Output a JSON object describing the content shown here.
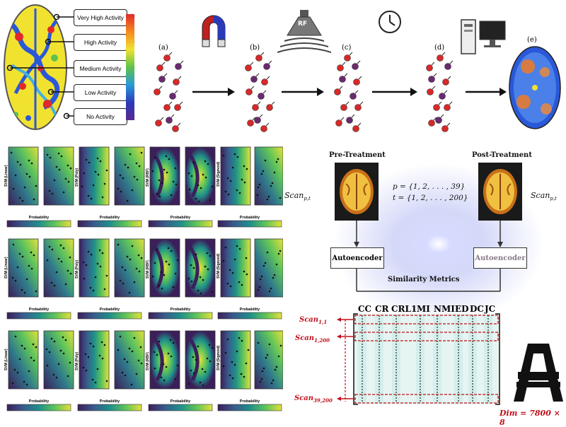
{
  "activity_legend": {
    "items": [
      "Very High Activity",
      "High Activity",
      "Medium Activity",
      "Low Activity",
      "No Activity"
    ]
  },
  "stages": {
    "labels": [
      "(a)",
      "(b)",
      "(c)",
      "(d)",
      "(e)"
    ],
    "rf_label": "RF"
  },
  "svm_grid": {
    "panel_titles": [
      "SVM (Linear)",
      "SVM (Poly)",
      "SVM (RBF)",
      "SVM (Sigmoid)"
    ],
    "colorbar_title": "Probability",
    "scan_label": "Scan",
    "scan_sub": "p,t"
  },
  "treatment": {
    "pre_label": "Pre-Treatment",
    "post_label": "Post-Treatment",
    "p_set": "p = {1, 2, . . . , 39}",
    "t_set": "t = {1, 2, . . . , 200}",
    "scan_label": "Scan",
    "scan_sub": "p,t",
    "autoencoder_left": "Autoencoder",
    "autoencoder_right": "Autoencoder",
    "similarity_label": "Similarity Metrics"
  },
  "matrix": {
    "columns": [
      "CC",
      "CR",
      "CRL1",
      "MI",
      "NMI",
      "ED",
      "DC",
      "JC"
    ],
    "rows": [
      {
        "main": "Scan",
        "sub": "1,1"
      },
      {
        "main": "Scan",
        "sub": "1,200"
      },
      {
        "main": "Scan",
        "sub": "39,200"
      }
    ],
    "dim_label": "Dim = 7800 × 8"
  },
  "colors": {
    "arrow": "#111111",
    "accent_red": "#c0101a",
    "brain_yellow": "#f2e230",
    "brain_blue": "#2a58d8",
    "viridis_dark": "#3b1f5a",
    "viridis_light": "#e4e03a"
  }
}
